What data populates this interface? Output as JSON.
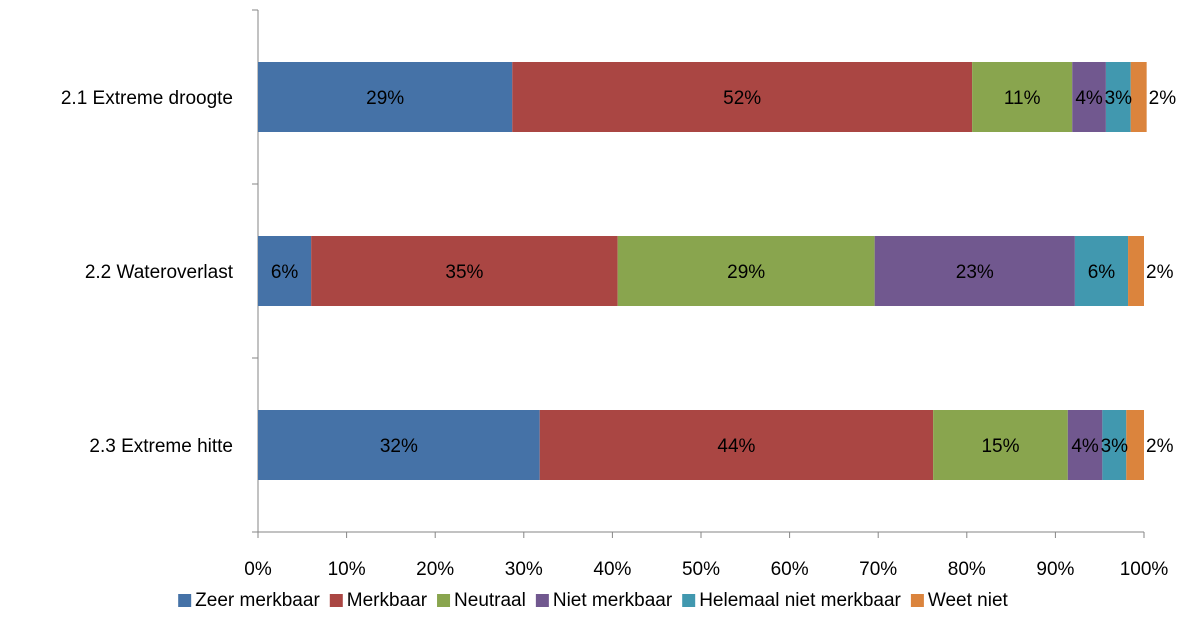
{
  "chart_data": {
    "type": "bar",
    "orientation": "horizontal",
    "stacked": "percent",
    "categories": [
      "2.1 Extreme droogte",
      "2.2 Wateroverlast",
      "2.3 Extreme hitte"
    ],
    "series": [
      {
        "name": "Zeer merkbaar",
        "color": "#4572A7",
        "values": [
          28.7,
          6.0,
          31.8
        ],
        "labels": [
          "29%",
          "6%",
          "32%"
        ]
      },
      {
        "name": "Merkbaar",
        "color": "#AA4643",
        "values": [
          51.9,
          34.6,
          44.4
        ],
        "labels": [
          "52%",
          "35%",
          "44%"
        ]
      },
      {
        "name": "Neutraal",
        "color": "#89A54E",
        "values": [
          11.3,
          29.0,
          15.2
        ],
        "labels": [
          "11%",
          "29%",
          "15%"
        ]
      },
      {
        "name": "Niet merkbaar",
        "color": "#71588F",
        "values": [
          3.8,
          22.6,
          3.9
        ],
        "labels": [
          "4%",
          "23%",
          "4%"
        ]
      },
      {
        "name": "Helemaal niet merkbaar",
        "color": "#4198AF",
        "values": [
          2.8,
          6.0,
          2.7
        ],
        "labels": [
          "3%",
          "6%",
          "3%"
        ]
      },
      {
        "name": "Weet niet",
        "color": "#DB843D",
        "values": [
          1.8,
          1.8,
          2.0
        ],
        "labels": [
          "2%",
          "2%",
          "2%"
        ]
      }
    ],
    "x_ticks": [
      "0%",
      "10%",
      "20%",
      "30%",
      "40%",
      "50%",
      "60%",
      "70%",
      "80%",
      "90%",
      "100%"
    ],
    "xlim": [
      0,
      100
    ],
    "grid": false,
    "legend_position": "bottom",
    "title": "",
    "xlabel": "",
    "ylabel": ""
  }
}
